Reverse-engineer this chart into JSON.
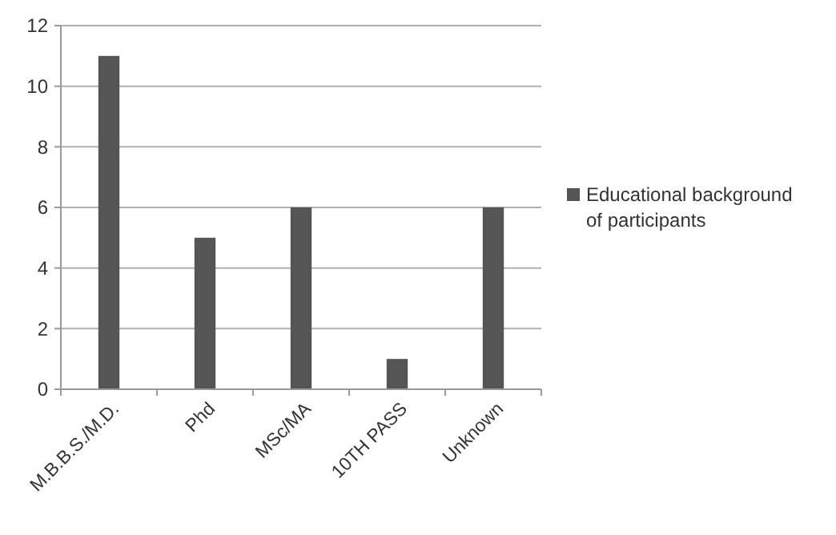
{
  "chart_data": {
    "type": "bar",
    "categories": [
      "M.B.B.S./M.D.",
      "Phd",
      "MSc/MA",
      "10TH PASS",
      "Unknown"
    ],
    "series": [
      {
        "name": "Educational background of participants",
        "color": "#555555",
        "values": [
          11,
          5,
          6,
          1,
          6
        ]
      }
    ],
    "ylim": [
      0,
      12
    ],
    "yticks": [
      0,
      2,
      4,
      6,
      8,
      10,
      12
    ],
    "grid": "y",
    "legend": "right"
  }
}
